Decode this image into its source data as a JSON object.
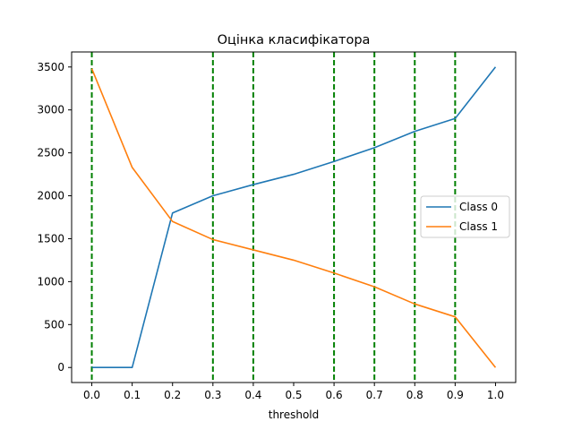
{
  "chart_data": {
    "type": "line",
    "title": "Оцінка класифікатора",
    "xlabel": "threshold",
    "ylabel": "",
    "x": [
      0.0,
      0.1,
      0.2,
      0.3,
      0.4,
      0.5,
      0.6,
      0.7,
      0.8,
      0.9,
      1.0
    ],
    "xticks": [
      "0.0",
      "0.1",
      "0.2",
      "0.3",
      "0.4",
      "0.5",
      "0.6",
      "0.7",
      "0.8",
      "0.9",
      "1.0"
    ],
    "yticks": [
      "0",
      "500",
      "1000",
      "1500",
      "2000",
      "2500",
      "3000",
      "3500"
    ],
    "ytick_values": [
      0,
      500,
      1000,
      1500,
      2000,
      2500,
      3000,
      3500
    ],
    "xlim": [
      -0.05,
      1.05
    ],
    "ylim": [
      -175,
      3675
    ],
    "series": [
      {
        "name": "Class 0",
        "color": "#1f77b4",
        "values": [
          0,
          0,
          1800,
          2000,
          2130,
          2250,
          2400,
          2560,
          2750,
          2900,
          3500
        ]
      },
      {
        "name": "Class 1",
        "color": "#ff7f0e",
        "values": [
          3480,
          2330,
          1700,
          1490,
          1370,
          1250,
          1100,
          940,
          740,
          590,
          0
        ]
      }
    ],
    "vlines": {
      "x": [
        0.0,
        0.3,
        0.4,
        0.6,
        0.7,
        0.8,
        0.9
      ],
      "color": "#008000",
      "style": "dashed"
    },
    "legend": "center-right",
    "grid": false
  }
}
